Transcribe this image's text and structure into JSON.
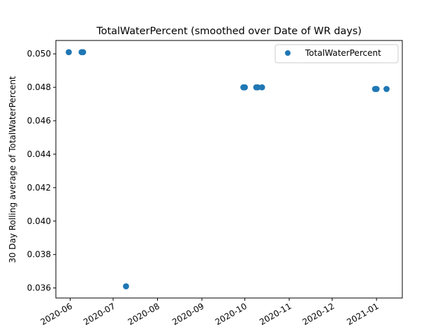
{
  "chart_data": {
    "type": "scatter",
    "title": "TotalWaterPercent (smoothed over Date of WR days)",
    "xlabel": "",
    "ylabel": "30 Day Rolling average of TotalWaterPercent",
    "x_scale": "date",
    "xlim": [
      "2020-05-22",
      "2021-01-19"
    ],
    "ylim": [
      0.0354,
      0.0508
    ],
    "x_ticks": [
      "2020-06",
      "2020-07",
      "2020-08",
      "2020-09",
      "2020-10",
      "2020-11",
      "2020-12",
      "2021-01"
    ],
    "y_ticks": [
      0.036,
      0.038,
      0.04,
      0.042,
      0.044,
      0.046,
      0.048,
      0.05
    ],
    "y_tick_labels": [
      "0.036",
      "0.038",
      "0.040",
      "0.042",
      "0.044",
      "0.046",
      "0.048",
      "0.050"
    ],
    "legend_position": "top-right",
    "grid": false,
    "series": [
      {
        "name": "TotalWaterPercent",
        "color": "#1f77b4",
        "marker": "circle",
        "points": [
          {
            "x": "2020-05-31",
            "y": 0.0501
          },
          {
            "x": "2020-06-09",
            "y": 0.0501
          },
          {
            "x": "2020-06-10",
            "y": 0.0501
          },
          {
            "x": "2020-07-10",
            "y": 0.0361
          },
          {
            "x": "2020-09-30",
            "y": 0.048
          },
          {
            "x": "2020-10-01",
            "y": 0.048
          },
          {
            "x": "2020-10-09",
            "y": 0.048
          },
          {
            "x": "2020-10-10",
            "y": 0.048
          },
          {
            "x": "2020-10-13",
            "y": 0.048
          },
          {
            "x": "2020-12-31",
            "y": 0.0479
          },
          {
            "x": "2021-01-01",
            "y": 0.0479
          },
          {
            "x": "2021-01-08",
            "y": 0.0479
          }
        ]
      }
    ]
  }
}
